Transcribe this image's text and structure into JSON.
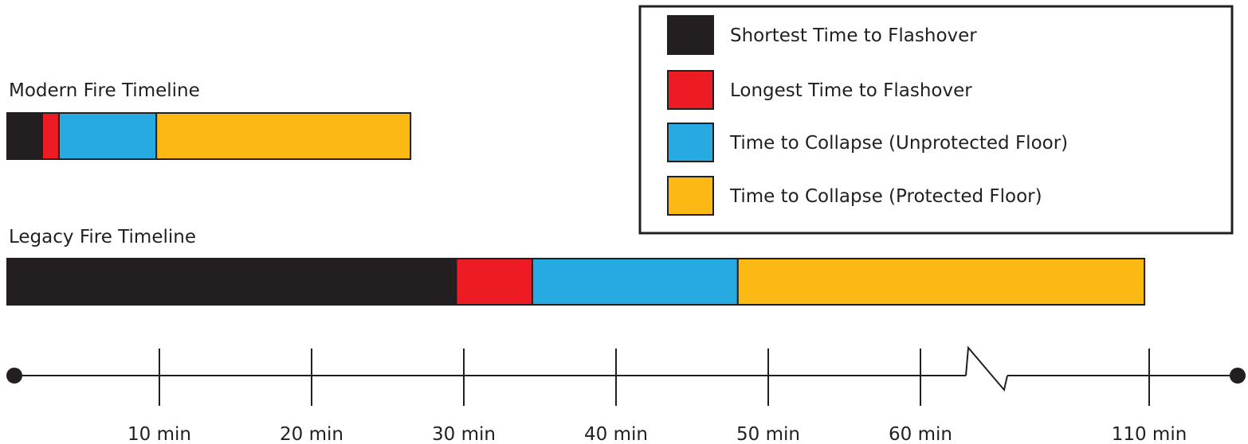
{
  "chart_data": {
    "type": "bar",
    "subtype": "stacked-horizontal-timeline",
    "legend_position": "top-right",
    "legend": [
      {
        "label": "Shortest Time to Flashover",
        "color": "#231f20"
      },
      {
        "label": "Longest Time to Flashover",
        "color": "#ed1c24"
      },
      {
        "label": "Time  to Collapse (Unprotected Floor)",
        "color": "#27aae1"
      },
      {
        "label": "Time  to Collapse (Protected Floor)",
        "color": "#fdb913"
      }
    ],
    "series": [
      {
        "name": "Modern Fire Timeline",
        "segments": [
          {
            "from": 0,
            "to": 2.3,
            "color": "#231f20"
          },
          {
            "from": 2.3,
            "to": 3.4,
            "color": "#ed1c24"
          },
          {
            "from": 3.4,
            "to": 9.8,
            "color": "#27aae1"
          },
          {
            "from": 9.8,
            "to": 26.5,
            "color": "#fdb913"
          }
        ]
      },
      {
        "name": "Legacy Fire Timeline",
        "segments": [
          {
            "from": 0,
            "to": 29.5,
            "color": "#231f20"
          },
          {
            "from": 29.5,
            "to": 34.5,
            "color": "#ed1c24"
          },
          {
            "from": 34.5,
            "to": 48.0,
            "color": "#27aae1"
          },
          {
            "from": 48.0,
            "to": 108.5,
            "color": "#fdb913"
          }
        ]
      }
    ],
    "axis": {
      "ticks": [
        {
          "value": 10,
          "label": "10 min"
        },
        {
          "value": 20,
          "label": "20 min"
        },
        {
          "value": 30,
          "label": "30 min"
        },
        {
          "value": 40,
          "label": "40 min"
        },
        {
          "value": 50,
          "label": "50 min"
        },
        {
          "value": 60,
          "label": "60 min"
        },
        {
          "value": 110,
          "label": "110 min"
        }
      ],
      "axis_break_between": [
        60,
        110
      ]
    }
  }
}
